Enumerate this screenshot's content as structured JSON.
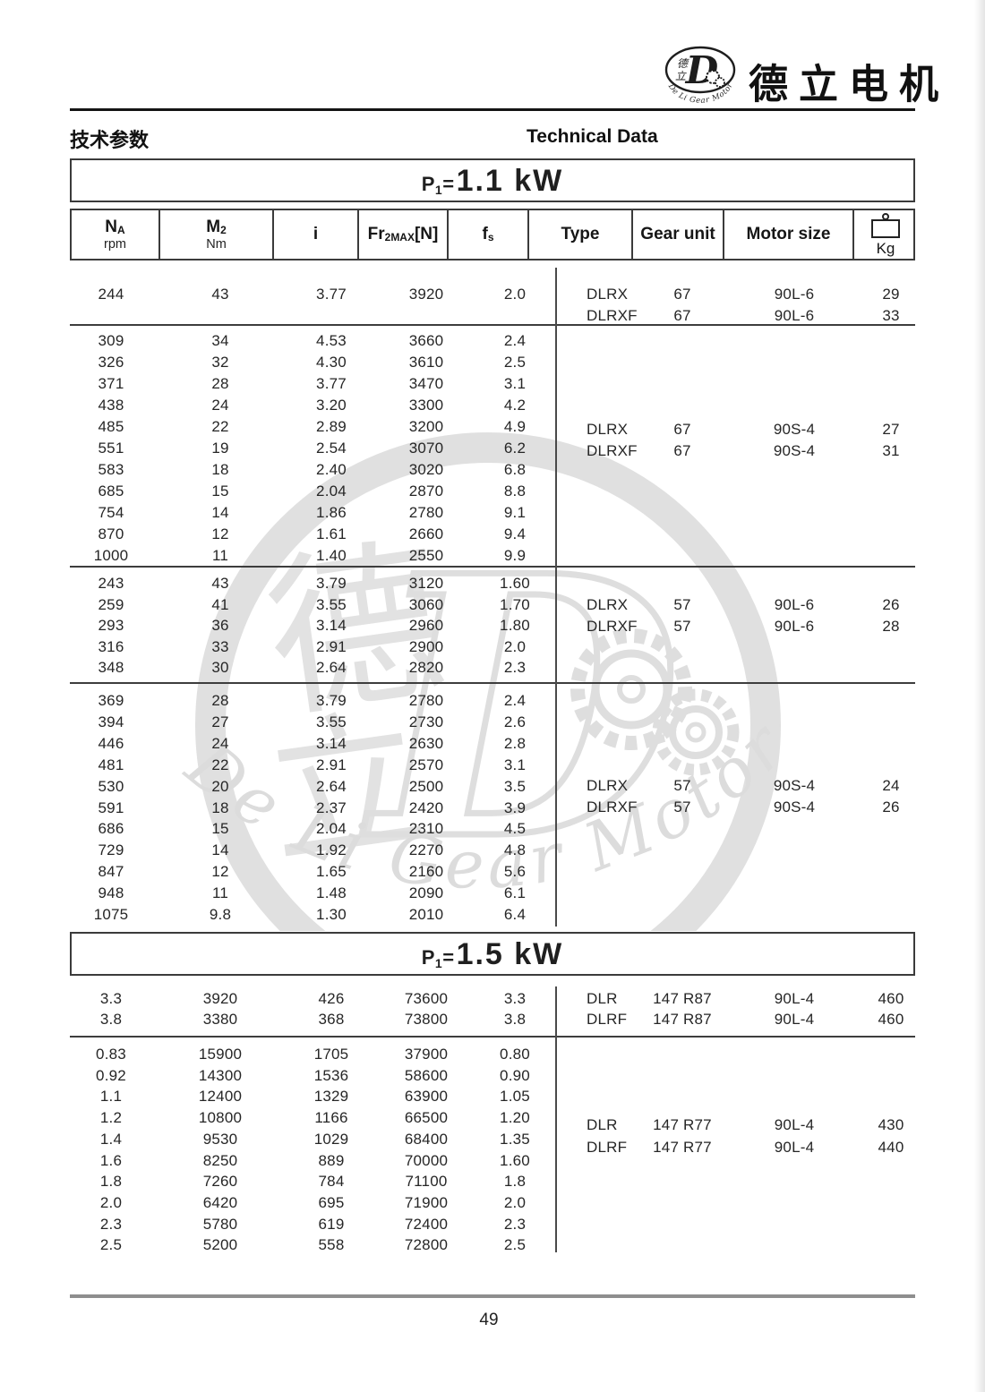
{
  "logo": {
    "company_cn": "德立电机",
    "emblem_arc_text": "De Li Gear Motor",
    "emblem_cn_top": "德",
    "emblem_cn_bottom": "立",
    "emblem_letter": "D"
  },
  "header": {
    "title_cn": "技术参数",
    "title_en": "Technical Data"
  },
  "columns": {
    "na": {
      "main": "N",
      "sub": "A",
      "unit": "rpm"
    },
    "m2": {
      "main": "M",
      "sub": "2",
      "unit": "Nm"
    },
    "i": {
      "label": "i"
    },
    "fr": {
      "pre": "Fr",
      "sub": "2MAX",
      "post": "[N]"
    },
    "fs": {
      "main": "f",
      "sub": "s"
    },
    "type": "Type",
    "gear": "Gear unit",
    "motor": "Motor size",
    "kg": "Kg"
  },
  "sections": [
    {
      "power_prefix": "P",
      "power_sub": "1",
      "power_eq": "=",
      "power_value": "1.1 kW",
      "groups": [
        {
          "rows": [
            [
              "244",
              "43",
              "3.77",
              "3920",
              "2.0"
            ]
          ],
          "variants": [
            [
              "DLRX",
              "67",
              "90L-6",
              "29"
            ],
            [
              "DLRXF",
              "67",
              "90L-6",
              "33"
            ]
          ]
        },
        {
          "rows": [
            [
              "309",
              "34",
              "4.53",
              "3660",
              "2.4"
            ],
            [
              "326",
              "32",
              "4.30",
              "3610",
              "2.5"
            ],
            [
              "371",
              "28",
              "3.77",
              "3470",
              "3.1"
            ],
            [
              "438",
              "24",
              "3.20",
              "3300",
              "4.2"
            ],
            [
              "485",
              "22",
              "2.89",
              "3200",
              "4.9"
            ],
            [
              "551",
              "19",
              "2.54",
              "3070",
              "6.2"
            ],
            [
              "583",
              "18",
              "2.40",
              "3020",
              "6.8"
            ],
            [
              "685",
              "15",
              "2.04",
              "2870",
              "8.8"
            ],
            [
              "754",
              "14",
              "1.86",
              "2780",
              "9.1"
            ],
            [
              "870",
              "12",
              "1.61",
              "2660",
              "9.4"
            ],
            [
              "1000",
              "11",
              "1.40",
              "2550",
              "9.9"
            ]
          ],
          "variants": [
            [
              "DLRX",
              "67",
              "90S-4",
              "27"
            ],
            [
              "DLRXF",
              "67",
              "90S-4",
              "31"
            ]
          ]
        },
        {
          "rows": [
            [
              "243",
              "43",
              "3.79",
              "3120",
              "1.60"
            ],
            [
              "259",
              "41",
              "3.55",
              "3060",
              "1.70"
            ],
            [
              "293",
              "36",
              "3.14",
              "2960",
              "1.80"
            ],
            [
              "316",
              "33",
              "2.91",
              "2900",
              "2.0"
            ],
            [
              "348",
              "30",
              "2.64",
              "2820",
              "2.3"
            ]
          ],
          "variants": [
            [
              "DLRX",
              "57",
              "90L-6",
              "26"
            ],
            [
              "DLRXF",
              "57",
              "90L-6",
              "28"
            ]
          ]
        },
        {
          "rows": [
            [
              "369",
              "28",
              "3.79",
              "2780",
              "2.4"
            ],
            [
              "394",
              "27",
              "3.55",
              "2730",
              "2.6"
            ],
            [
              "446",
              "24",
              "3.14",
              "2630",
              "2.8"
            ],
            [
              "481",
              "22",
              "2.91",
              "2570",
              "3.1"
            ],
            [
              "530",
              "20",
              "2.64",
              "2500",
              "3.5"
            ],
            [
              "591",
              "18",
              "2.37",
              "2420",
              "3.9"
            ],
            [
              "686",
              "15",
              "2.04",
              "2310",
              "4.5"
            ],
            [
              "729",
              "14",
              "1.92",
              "2270",
              "4.8"
            ],
            [
              "847",
              "12",
              "1.65",
              "2160",
              "5.6"
            ],
            [
              "948",
              "11",
              "1.48",
              "2090",
              "6.1"
            ],
            [
              "1075",
              "9.8",
              "1.30",
              "2010",
              "6.4"
            ]
          ],
          "variants": [
            [
              "DLRX",
              "57",
              "90S-4",
              "24"
            ],
            [
              "DLRXF",
              "57",
              "90S-4",
              "26"
            ]
          ]
        }
      ]
    },
    {
      "power_prefix": "P",
      "power_sub": "1",
      "power_eq": "=",
      "power_value": "1.5 kW",
      "groups": [
        {
          "rows": [
            [
              "3.3",
              "3920",
              "426",
              "73600",
              "3.3"
            ],
            [
              "3.8",
              "3380",
              "368",
              "73800",
              "3.8"
            ]
          ],
          "variants": [
            [
              "DLR",
              "147 R87",
              "90L-4",
              "460"
            ],
            [
              "DLRF",
              "147 R87",
              "90L-4",
              "460"
            ]
          ]
        },
        {
          "rows": [
            [
              "0.83",
              "15900",
              "1705",
              "37900",
              "0.80"
            ],
            [
              "0.92",
              "14300",
              "1536",
              "58600",
              "0.90"
            ],
            [
              "1.1",
              "12400",
              "1329",
              "63900",
              "1.05"
            ],
            [
              "1.2",
              "10800",
              "1166",
              "66500",
              "1.20"
            ],
            [
              "1.4",
              "9530",
              "1029",
              "68400",
              "1.35"
            ],
            [
              "1.6",
              "8250",
              "889",
              "70000",
              "1.60"
            ],
            [
              "1.8",
              "7260",
              "784",
              "71100",
              "1.8"
            ],
            [
              "2.0",
              "6420",
              "695",
              "71900",
              "2.0"
            ],
            [
              "2.3",
              "5780",
              "619",
              "72400",
              "2.3"
            ],
            [
              "2.5",
              "5200",
              "558",
              "72800",
              "2.5"
            ]
          ],
          "variants": [
            [
              "DLR",
              "147 R77",
              "90L-4",
              "430"
            ],
            [
              "DLRF",
              "147 R77",
              "90L-4",
              "440"
            ]
          ]
        }
      ]
    }
  ],
  "watermark": {
    "arc_text": "De Li Gear Motor",
    "char_top": "德",
    "char_bottom": "立",
    "letter": "D"
  },
  "footer": {
    "page_number": "49"
  }
}
